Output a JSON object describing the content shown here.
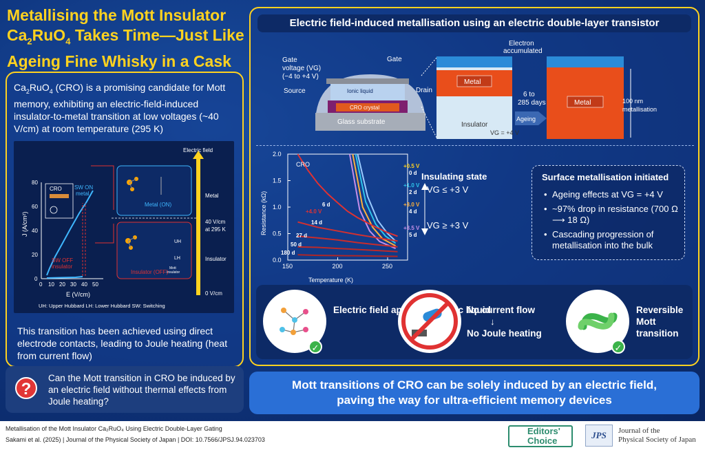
{
  "title": {
    "line1": "Metallising the Mott Insulator",
    "ca": "Ca",
    "sub2": "2",
    "ru": "RuO",
    "sub4": "4",
    "rest": " Takes Time—Just Like",
    "line3": "Ageing Fine Whisky in a Cask"
  },
  "intro": {
    "ca": "Ca",
    "sub2": "2",
    "ru": "RuO",
    "sub4": "4",
    "text": " (CRO) is a promising candidate for Mott memory, exhibiting an electric-field-induced insulator-to-metal transition at low voltages (~40 V/cm) at room temperature (295 K)"
  },
  "left_figure": {
    "electric_field": "Electric field",
    "cro": "CRO",
    "sw_on": "SW ON",
    "metal_small": "metal",
    "sw_off": "SW OFF",
    "insulator_small": "insulator",
    "metal_on": "Metal (ON)",
    "insulator_off": "Insulator (OFF)",
    "metal": "Metal",
    "insulator": "Insulator",
    "field_40": "40 V/cm",
    "at_295": "at 295 K",
    "field_0": "0 V/cm",
    "ylabel": "J (A/cm²)",
    "xlabel": "E (V/cm)",
    "y_ticks": [
      "80",
      "60",
      "40",
      "20",
      "0"
    ],
    "x_ticks": [
      "0",
      "10",
      "20",
      "30",
      "40",
      "50"
    ],
    "uh": "UH",
    "lh": "LH",
    "mott": "Mott",
    "insulator_tiny": "Insulator",
    "legend": "UH: Upper Hubbard    LH: Lower Hubbard    SW: Switching"
  },
  "transition_text": "This transition has been achieved using direct electrode contacts, leading to Joule heating (heat from current flow)",
  "question": "Can the Mott transition in CRO be induced by an electric field without thermal effects from Joule heating?",
  "edlt": {
    "header": "Electric field-induced metallisation using an electric double-layer transistor",
    "gate": "Gate",
    "gate_voltage": "Gate",
    "voltage_vg": "voltage (VG)",
    "vg_range": "(−4 to +4 V)",
    "ionic_liquid": "Ionic liquid",
    "source": "Source",
    "drain": "Drain",
    "cro_crystal": "CRO crystal",
    "glass": "Glass substrate",
    "electron_acc": "Electron",
    "accumulated": "accumulated",
    "metal": "Metal",
    "insulator": "Insulator",
    "days": "6 to",
    "days2": "285 days",
    "ageing": "Ageing",
    "vg_plus4": "VG = +4 V",
    "metal2": "Metal",
    "nm100": "100 nm",
    "metallisation": "metallisation"
  },
  "chart_data": {
    "type": "line",
    "title": "",
    "inset_label": "CRO",
    "xlabel": "Temperature (K)",
    "ylabel": "Resistance (kΩ)",
    "xlim": [
      150,
      270
    ],
    "ylim": [
      0,
      2.0
    ],
    "x_ticks": [
      "150",
      "200",
      "250"
    ],
    "y_ticks": [
      "2.0",
      "1.5",
      "1.0",
      "0.5",
      "0.0"
    ],
    "grid": false,
    "series": [
      {
        "name": "+0.5 V",
        "color": "#9acbff",
        "x": [
          220,
          230,
          240,
          250,
          258
        ],
        "y": [
          2.0,
          1.2,
          0.75,
          0.5,
          0.36
        ]
      },
      {
        "name": "+1.0 V",
        "color": "#2ec4ea",
        "x": [
          218,
          228,
          238,
          248,
          258
        ],
        "y": [
          2.0,
          1.1,
          0.68,
          0.45,
          0.32
        ]
      },
      {
        "name": "+3.0 V",
        "color": "#ffb13b",
        "x": [
          215,
          225,
          235,
          245,
          258
        ],
        "y": [
          2.0,
          1.0,
          0.62,
          0.4,
          0.27
        ]
      },
      {
        "name": "+3.5 V",
        "color": "#c58ee8",
        "x": [
          212,
          222,
          232,
          242,
          258
        ],
        "y": [
          2.0,
          0.95,
          0.55,
          0.35,
          0.22
        ]
      },
      {
        "name": "+4.0 V 6 d",
        "color": "#e03232",
        "x": [
          160,
          170,
          180,
          190,
          200,
          210,
          220,
          235,
          250,
          260
        ],
        "y": [
          2.0,
          1.7,
          1.45,
          1.25,
          1.08,
          0.92,
          0.8,
          0.65,
          0.52,
          0.45
        ]
      },
      {
        "name": "14 d",
        "color": "#d23030",
        "x": [
          160,
          180,
          200,
          220,
          240,
          260
        ],
        "y": [
          0.72,
          0.62,
          0.55,
          0.48,
          0.42,
          0.36
        ]
      },
      {
        "name": "27 d",
        "color": "#c92c2c",
        "x": [
          160,
          180,
          200,
          220,
          240,
          260
        ],
        "y": [
          0.45,
          0.42,
          0.38,
          0.33,
          0.29,
          0.25
        ]
      },
      {
        "name": "50 d",
        "color": "#bd2a2a",
        "x": [
          160,
          180,
          200,
          220,
          240,
          260
        ],
        "y": [
          0.25,
          0.24,
          0.22,
          0.2,
          0.18,
          0.16
        ]
      },
      {
        "name": "180 d",
        "color": "#b02626",
        "x": [
          160,
          180,
          200,
          220,
          240,
          260
        ],
        "y": [
          0.1,
          0.09,
          0.085,
          0.08,
          0.075,
          0.07
        ]
      }
    ],
    "labels": [
      "+0.5 V",
      "0 d",
      "+1.0 V",
      "2 d",
      "+3.0 V",
      "4 d",
      "+3.5 V",
      "5 d",
      "+4.0 V",
      "6 d",
      "14 d",
      "27 d",
      "50 d",
      "180 d"
    ]
  },
  "insulating": {
    "title": "Insulating state",
    "vg_le": "VG ≤ +3 V",
    "vg_ge": "VG ≥ +3 V"
  },
  "surface": {
    "title": "Surface metallisation initiated",
    "items": [
      "Ageing effects at VG = +4 V",
      "~97% drop in resistance (700 Ω ⟶ 18 Ω)",
      "Cascading progression of metallisation into the bulk"
    ]
  },
  "icons": {
    "field_label": "Electric field applied via ionic liquid",
    "no_current": "No current flow",
    "arrow": "↓",
    "no_joule": "No Joule heating",
    "reversible": "Reversible Mott transition"
  },
  "conclusion": {
    "line1": "Mott transitions of CRO can be solely induced by an electric field,",
    "line2": "paving the way for ultra-efficient memory devices"
  },
  "footer": {
    "cite_title": "Metallisation of the Mott Insulator Ca₂RuO₄ Using Electric Double-Layer Gating",
    "cite_authors": "Sakami et al. (2025) | Journal of the Physical Society of Japan | DOI: 10.7566/JPSJ.94.023703",
    "editors": "Editors'",
    "choice": "Choice",
    "jps": "JPS",
    "journal1": "Journal of the",
    "journal2": "Physical Society of Japan"
  },
  "colors": {
    "accent": "#ffd21f",
    "panel": "#0d2a66",
    "conclusion": "#2a6fd6",
    "metal": "#e94e1b",
    "check": "#3bb34a"
  }
}
